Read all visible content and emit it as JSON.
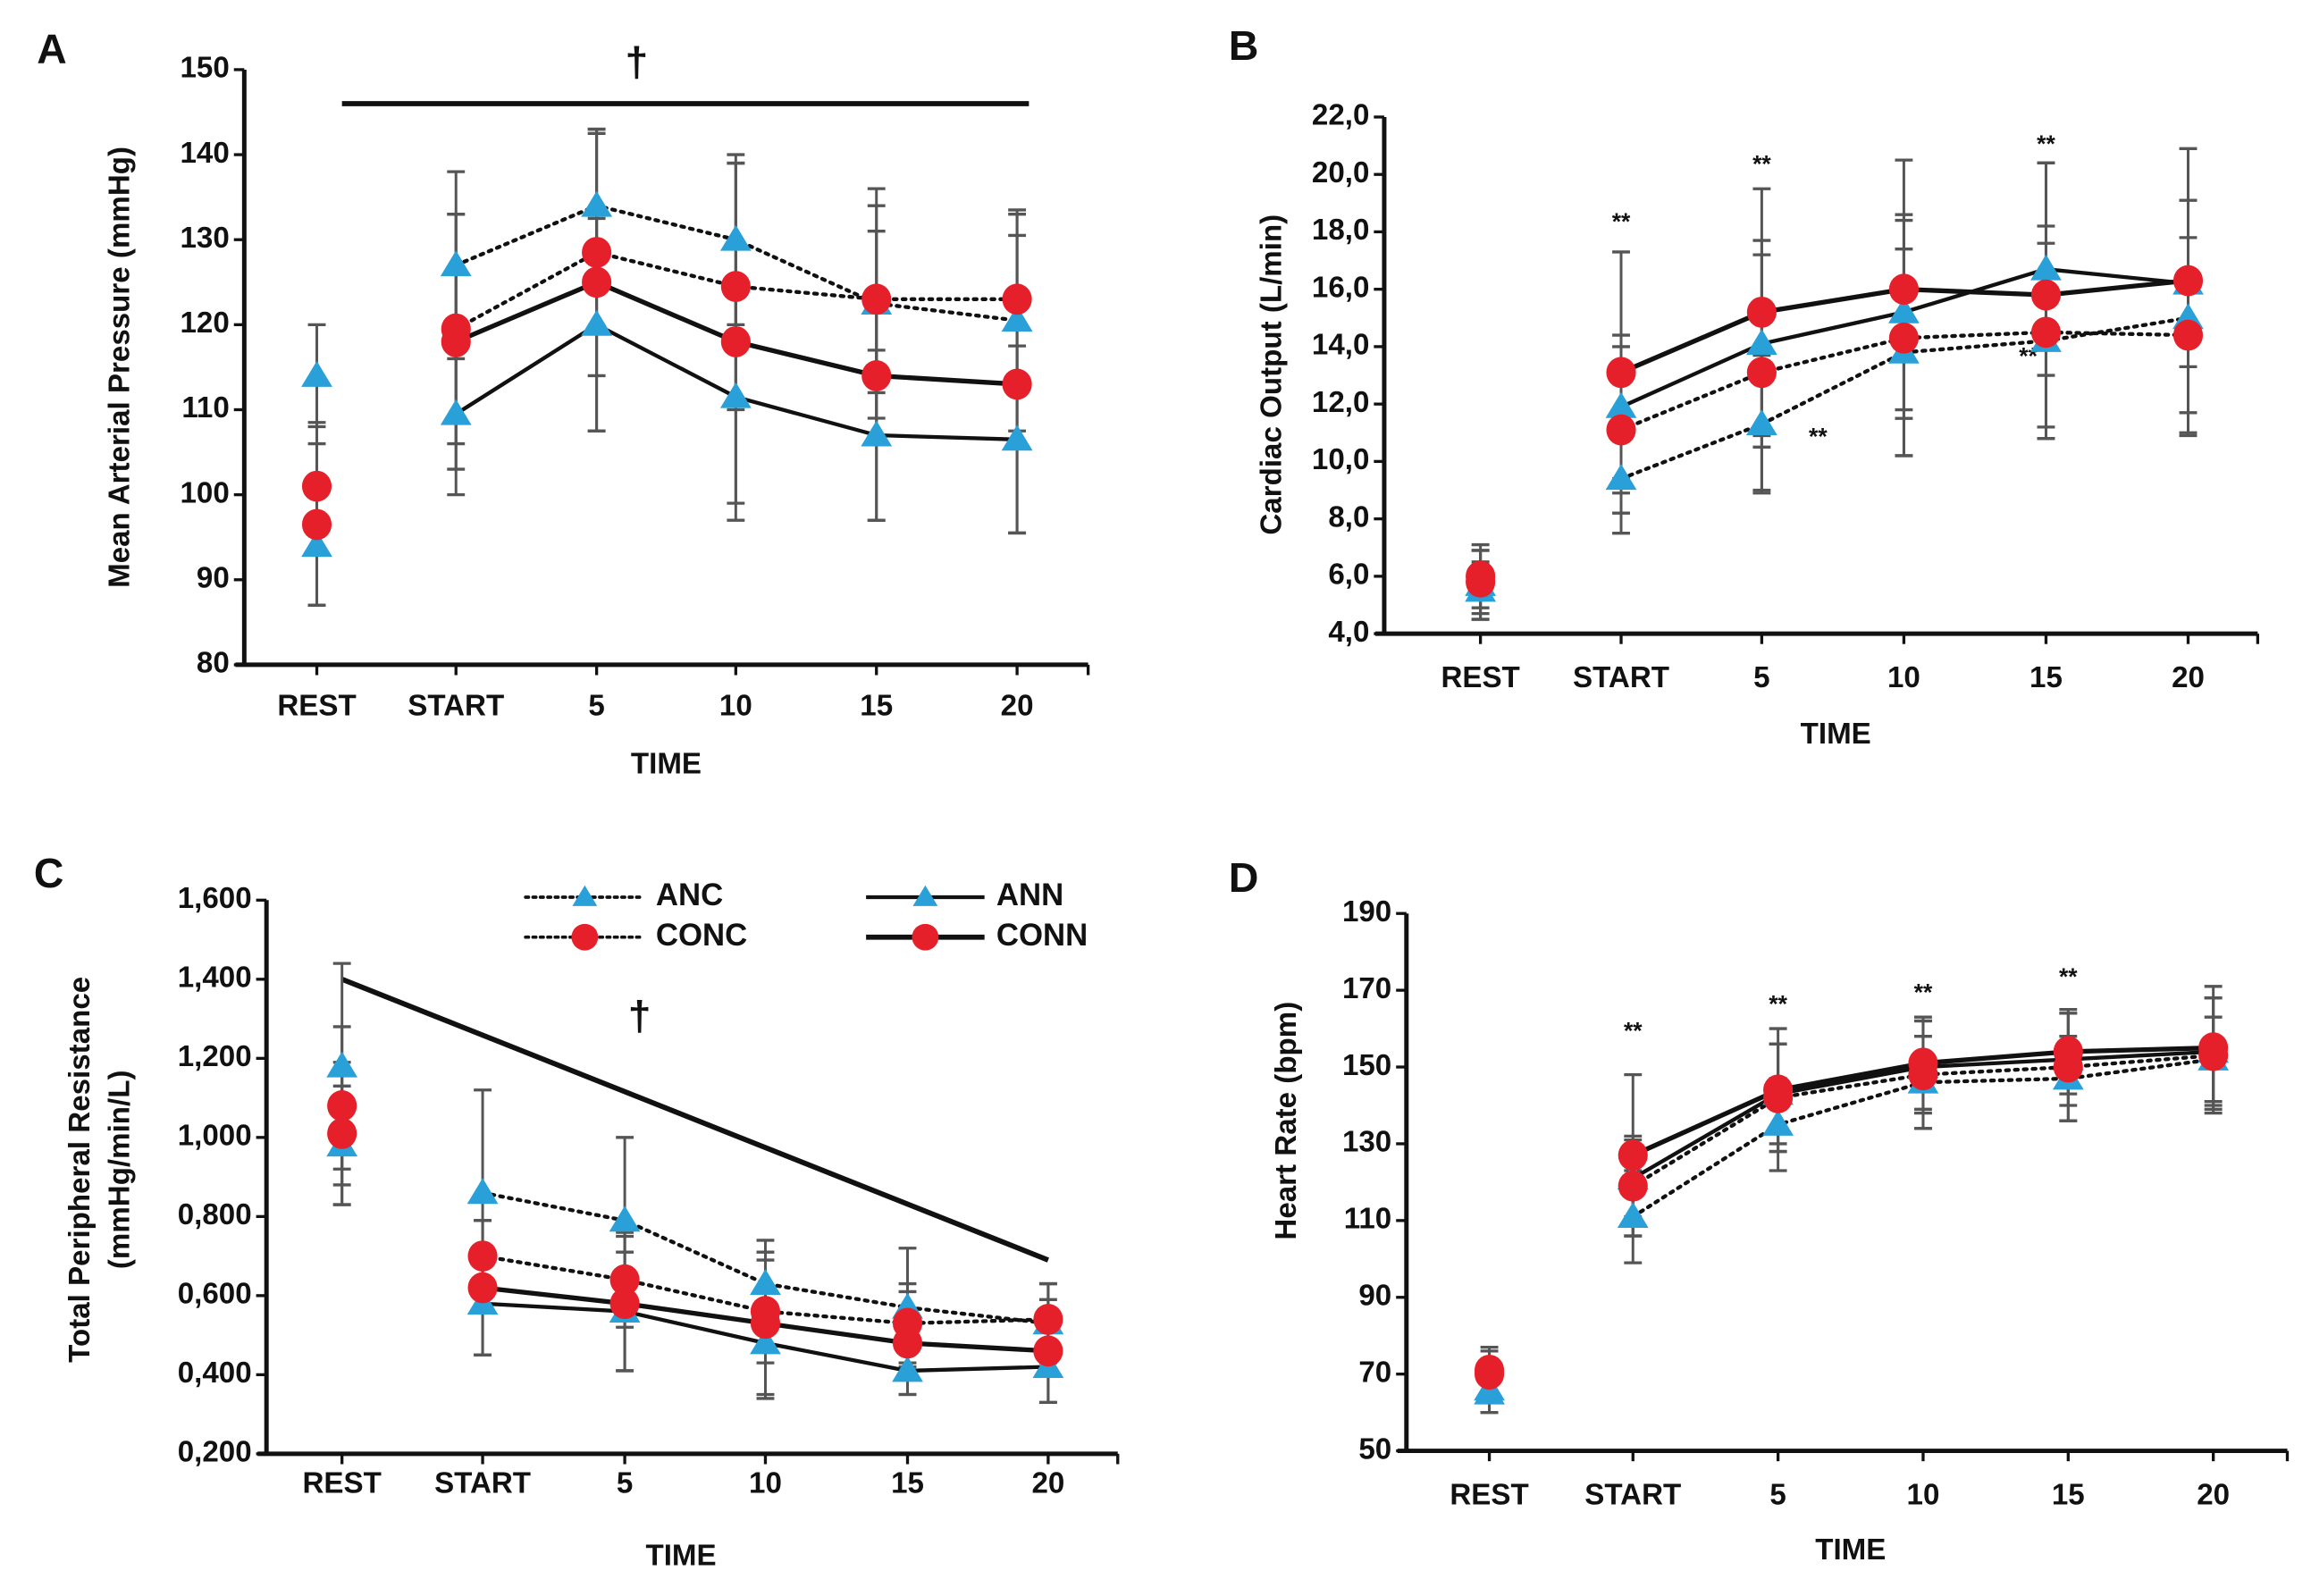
{
  "colors": {
    "triangle": "#2aa0d8",
    "circle": "#e5202a",
    "error_bar": "#555555",
    "line": "#111111"
  },
  "legend": {
    "placement": "top",
    "entries": [
      {
        "name": "ANC",
        "marker": "triangle",
        "line": "dotted"
      },
      {
        "name": "CONC",
        "marker": "circle",
        "line": "dotted"
      },
      {
        "name": "ANN",
        "marker": "triangle",
        "line": "solid"
      },
      {
        "name": "CONN",
        "marker": "circle",
        "line": "solid"
      }
    ]
  },
  "chart_data": [
    {
      "panel": "A",
      "type": "line",
      "ylabel": "Mean Arterial Pressure (mmHg)",
      "xlabel": "TIME",
      "categories": [
        "REST",
        "START",
        "5",
        "10",
        "15",
        "20"
      ],
      "ylim": [
        80,
        150
      ],
      "yticks": [
        150,
        140,
        130,
        120,
        110,
        100,
        90,
        80
      ],
      "ytick_labels": [
        "150",
        "140",
        "130",
        "120",
        "110",
        "100",
        "90",
        "80"
      ],
      "significance": {
        "label": "†",
        "bar_value": 146
      },
      "series": [
        {
          "name": "ANC",
          "values": [
            114,
            127,
            134,
            130,
            122.5,
            120.5
          ],
          "error": [
            6,
            11,
            9,
            10,
            13.5,
            13
          ]
        },
        {
          "name": "ANN",
          "values": [
            94,
            109.5,
            120,
            111.5,
            107,
            106.5
          ],
          "error": [
            7,
            9.5,
            12.5,
            12.5,
            10,
            11
          ]
        },
        {
          "name": "CONC",
          "values": [
            101,
            119.5,
            128.5,
            124.5,
            123,
            123
          ],
          "error": [
            7.5,
            13.5,
            14.5,
            14.5,
            11,
            10
          ]
        },
        {
          "name": "CONN",
          "values": [
            96.5,
            118,
            125,
            118,
            114,
            113
          ],
          "error": [
            9.5,
            15,
            17.5,
            21,
            17,
            17.5
          ]
        }
      ]
    },
    {
      "panel": "B",
      "type": "line",
      "ylabel": "Cardiac Output (L/min)",
      "xlabel": "TIME",
      "categories": [
        "REST",
        "START",
        "5",
        "10",
        "15",
        "20"
      ],
      "ylim": [
        4,
        22
      ],
      "yticks": [
        22,
        20,
        18,
        16,
        14,
        12,
        10,
        8,
        6,
        4
      ],
      "ytick_labels": [
        "22,0",
        "20,0",
        "18,0",
        "16,0",
        "14,0",
        "12,0",
        "10,0",
        "8,0",
        "6,0",
        "4,0"
      ],
      "annotations": [
        {
          "label": "**",
          "category": "START",
          "y": 18.3,
          "size": "large"
        },
        {
          "label": "**",
          "category": "5",
          "y": 20.3,
          "size": "large"
        },
        {
          "label": "**",
          "category": "15",
          "y": 21.0,
          "size": "large"
        },
        {
          "label": "**",
          "category": "5-10",
          "y": 10.8,
          "size": "small"
        },
        {
          "label": "**",
          "category": "15",
          "y": 13.6,
          "size": "small"
        }
      ],
      "series": [
        {
          "name": "ANC",
          "values": [
            5.5,
            9.4,
            11.3,
            13.8,
            14.2,
            15.0
          ],
          "error": [
            1.0,
            1.9,
            2.4,
            3.6,
            3.4,
            4.1
          ]
        },
        {
          "name": "ANN",
          "values": [
            5.7,
            11.9,
            14.1,
            15.2,
            16.7,
            16.2
          ],
          "error": [
            1.2,
            2.5,
            3.6,
            3.4,
            3.7,
            2.9
          ]
        },
        {
          "name": "CONC",
          "values": [
            5.8,
            11.1,
            13.1,
            14.3,
            14.5,
            14.4
          ],
          "error": [
            1.1,
            2.9,
            4.1,
            4.1,
            3.7,
            3.4
          ]
        },
        {
          "name": "CONN",
          "values": [
            6.0,
            13.1,
            15.2,
            16.0,
            15.8,
            16.3
          ],
          "error": [
            1.1,
            4.2,
            4.3,
            4.5,
            4.6,
            4.6
          ]
        }
      ]
    },
    {
      "panel": "C",
      "type": "line",
      "ylabel": [
        "Total Peripheral Resistance",
        "(mmHg/min/L)"
      ],
      "xlabel": "TIME",
      "categories": [
        "REST",
        "START",
        "5",
        "10",
        "15",
        "20"
      ],
      "ylim": [
        0.2,
        1.6
      ],
      "yticks": [
        1.6,
        1.4,
        1.2,
        1.0,
        0.8,
        0.6,
        0.4,
        0.2
      ],
      "ytick_labels": [
        "1,600",
        "1,400",
        "1,200",
        "1,000",
        "0,800",
        "0,600",
        "0,400",
        "0,200"
      ],
      "significance": {
        "label": "†",
        "trend_line": {
          "from": [
            "REST",
            1.4
          ],
          "to": [
            "20",
            0.69
          ]
        }
      },
      "series": [
        {
          "name": "ANC",
          "values": [
            1.18,
            0.86,
            0.79,
            0.63,
            0.57,
            0.53
          ],
          "error": [
            0.26,
            0.26,
            0.21,
            0.11,
            0.15,
            0.1
          ]
        },
        {
          "name": "ANN",
          "values": [
            0.98,
            0.58,
            0.56,
            0.48,
            0.41,
            0.42
          ],
          "error": [
            0.15,
            0.13,
            0.15,
            0.14,
            0.06,
            0.09
          ]
        },
        {
          "name": "CONC",
          "values": [
            1.08,
            0.7,
            0.64,
            0.56,
            0.53,
            0.54
          ],
          "error": [
            0.2,
            0.09,
            0.12,
            0.13,
            0.1,
            0.09
          ]
        },
        {
          "name": "CONN",
          "values": [
            1.01,
            0.62,
            0.58,
            0.53,
            0.48,
            0.46
          ],
          "error": [
            0.18,
            0.17,
            0.17,
            0.18,
            0.13,
            0.13
          ]
        }
      ]
    },
    {
      "panel": "D",
      "type": "line",
      "ylabel": "Heart Rate (bpm)",
      "xlabel": "TIME",
      "categories": [
        "REST",
        "START",
        "5",
        "10",
        "15",
        "20"
      ],
      "ylim": [
        50,
        190
      ],
      "yticks": [
        190,
        170,
        150,
        130,
        110,
        90,
        70,
        50
      ],
      "ytick_labels": [
        "190",
        "170",
        "150",
        "130",
        "110",
        "90",
        "70",
        "50"
      ],
      "annotations": [
        {
          "label": "**",
          "category": "START",
          "y": 159,
          "size": "large"
        },
        {
          "label": "**",
          "category": "5",
          "y": 166,
          "size": "large"
        },
        {
          "label": "**",
          "category": "10",
          "y": 169,
          "size": "large"
        },
        {
          "label": "**",
          "category": "15",
          "y": 173,
          "size": "large"
        }
      ],
      "series": [
        {
          "name": "ANC",
          "values": [
            65,
            111,
            135,
            146,
            147,
            152
          ],
          "error": [
            5,
            12,
            12,
            12,
            11,
            11
          ]
        },
        {
          "name": "ANN",
          "values": [
            66,
            121,
            143,
            150,
            152,
            154
          ],
          "error": [
            6,
            10,
            13,
            12,
            12,
            14
          ]
        },
        {
          "name": "CONC",
          "values": [
            70,
            119,
            142,
            148,
            150,
            153
          ],
          "error": [
            6,
            13,
            14,
            14,
            14,
            15
          ]
        },
        {
          "name": "CONN",
          "values": [
            71,
            127,
            144,
            151,
            154,
            155
          ],
          "error": [
            6,
            21,
            16,
            12,
            11,
            16
          ]
        }
      ]
    }
  ]
}
